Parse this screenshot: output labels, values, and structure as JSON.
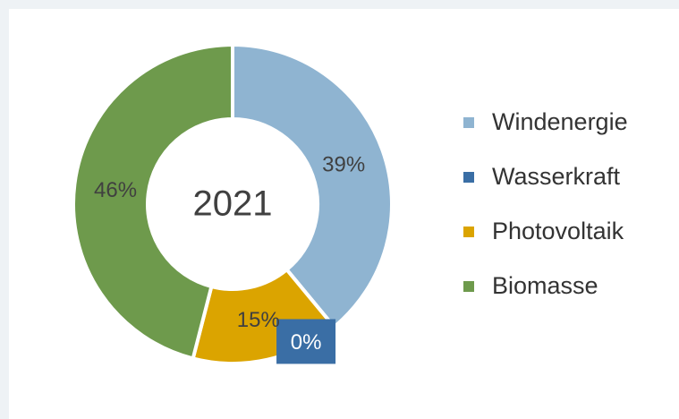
{
  "chart_data": {
    "type": "pie",
    "donut": true,
    "center_label": "2021",
    "categories": [
      "Windenergie",
      "Wasserkraft",
      "Photovoltaik",
      "Biomasse"
    ],
    "values": [
      39,
      0,
      15,
      46
    ],
    "value_labels": [
      "39%",
      "0%",
      "15%",
      "46%"
    ],
    "colors": [
      "#8fb4d1",
      "#3a6ea5",
      "#dba400",
      "#6e9a4c"
    ],
    "legend": "right"
  }
}
